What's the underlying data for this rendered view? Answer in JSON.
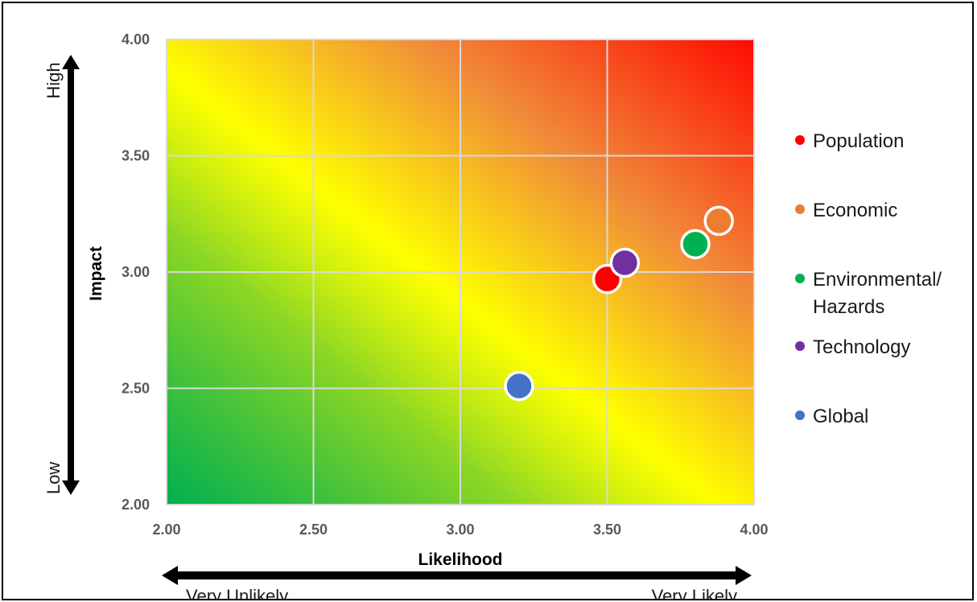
{
  "chart_data": {
    "type": "scatter",
    "title": "",
    "xlabel": "Likelihood",
    "ylabel": "Impact",
    "xlim": [
      2.0,
      4.0
    ],
    "ylim": [
      2.0,
      4.0
    ],
    "x_ticks": [
      "2.00",
      "2.50",
      "3.00",
      "3.50",
      "4.00"
    ],
    "y_ticks": [
      "2.00",
      "2.50",
      "3.00",
      "3.50",
      "4.00"
    ],
    "x_low_label": "Very Unlikely",
    "x_high_label": "Very Likely",
    "y_low_label": "Low",
    "y_high_label": "High",
    "grid": true,
    "legend_position": "right",
    "background": "diagonal gradient green (low-low) to yellow to red (high-high)",
    "series": [
      {
        "name": "Population",
        "color": "#ff0000",
        "x": 3.5,
        "y": 2.97
      },
      {
        "name": "Economic",
        "color": "#ed7d31",
        "x": 3.88,
        "y": 3.22
      },
      {
        "name": "Environmental/ Hazards",
        "label_lines": [
          "Environmental/",
          "Hazards"
        ],
        "color": "#00b050",
        "x": 3.8,
        "y": 3.12
      },
      {
        "name": "Technology",
        "color": "#7030a0",
        "x": 3.56,
        "y": 3.04
      },
      {
        "name": "Global",
        "color": "#4472c4",
        "x": 3.2,
        "y": 2.51
      }
    ]
  }
}
